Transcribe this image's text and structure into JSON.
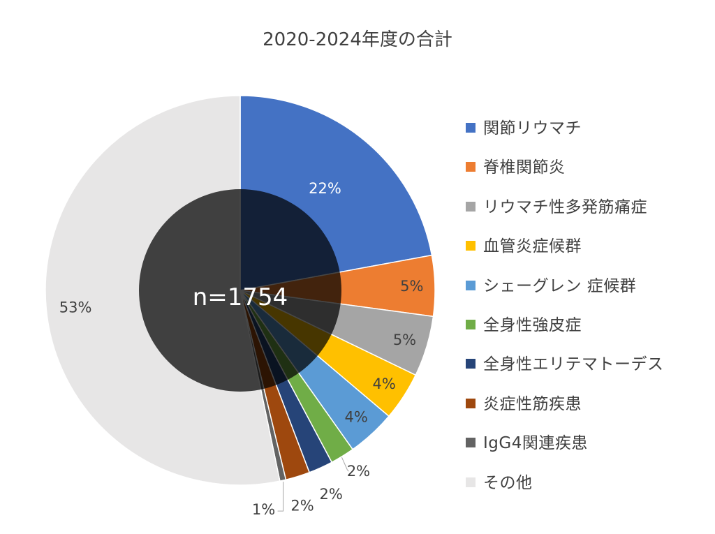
{
  "chart_data": {
    "type": "pie",
    "title": "2020-2024年度の合計",
    "center_label": "n=1754",
    "legend_position": "right",
    "slices": [
      {
        "label": "関節リウマチ",
        "value": 22,
        "display": "22%",
        "color": "#4472C4"
      },
      {
        "label": "脊椎関節炎",
        "value": 5,
        "display": "5%",
        "color": "#ED7D31"
      },
      {
        "label": "リウマチ性多発筋痛症",
        "value": 5,
        "display": "5%",
        "color": "#A5A5A5"
      },
      {
        "label": "血管炎症候群",
        "value": 4,
        "display": "4%",
        "color": "#FFC000"
      },
      {
        "label": "シェーグレン 症候群",
        "value": 4,
        "display": "4%",
        "color": "#5B9BD5"
      },
      {
        "label": "全身性強皮症",
        "value": 2,
        "display": "2%",
        "color": "#70AD47"
      },
      {
        "label": "全身性エリテマトーデス",
        "value": 2,
        "display": "2%",
        "color": "#264478"
      },
      {
        "label": "炎症性筋疾患",
        "value": 2,
        "display": "2%",
        "color": "#9E480E"
      },
      {
        "label": "IgG4関連疾患",
        "value": 0.5,
        "display": "1%",
        "color": "#636363"
      },
      {
        "label": "その他",
        "value": 53,
        "display": "53%",
        "color": "#E7E6E6"
      }
    ]
  }
}
